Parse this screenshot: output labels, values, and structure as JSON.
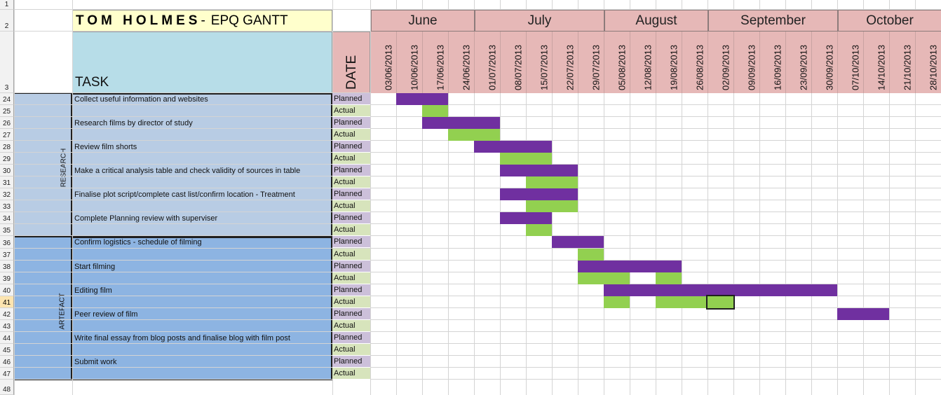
{
  "row_numbers": [
    "1",
    "2",
    "3",
    "24",
    "25",
    "26",
    "27",
    "28",
    "29",
    "30",
    "31",
    "32",
    "33",
    "34",
    "35",
    "36",
    "37",
    "38",
    "39",
    "40",
    "41",
    "42",
    "43",
    "44",
    "45",
    "46",
    "47",
    "48"
  ],
  "selected_row": "41",
  "title": {
    "name": "TOM HOLMES",
    "separator": "-",
    "subtitle": "EPQ GANTT"
  },
  "header": {
    "task_label": "TASK",
    "date_label": "DATE"
  },
  "months": [
    "June",
    "July",
    "August",
    "September",
    "October"
  ],
  "weeks": [
    "03/06/2013",
    "10/06/2013",
    "17/06/2013",
    "24/06/2013",
    "01/07/2013",
    "08/07/2013",
    "15/07/2013",
    "22/07/2013",
    "29/07/2013",
    "05/08/2013",
    "12/08/2013",
    "19/08/2013",
    "26/08/2013",
    "02/09/2013",
    "09/09/2013",
    "16/09/2013",
    "23/09/2013",
    "30/09/2013",
    "07/10/2013",
    "14/10/2013",
    "21/10/2013",
    "28/10/2013"
  ],
  "sections": [
    {
      "label": "RESEARCH",
      "color": "#b8cce4"
    },
    {
      "label": "ARTEFACT",
      "color": "#8db4e2"
    }
  ],
  "tasks": [
    {
      "name": "Collect useful information and websites",
      "planned": [
        [
          1,
          3
        ]
      ],
      "actual": [
        [
          2,
          3
        ]
      ]
    },
    {
      "name": "Research films by director of study",
      "planned": [
        [
          2,
          5
        ]
      ],
      "actual": [
        [
          3,
          5
        ]
      ]
    },
    {
      "name": "Review film shorts",
      "planned": [
        [
          4,
          7
        ]
      ],
      "actual": [
        [
          5,
          7
        ]
      ]
    },
    {
      "name": "Make a critical analysis table and check validity of sources in table",
      "planned": [
        [
          5,
          8
        ]
      ],
      "actual": [
        [
          6,
          8
        ]
      ]
    },
    {
      "name": "Finalise plot script/complete cast list/confirm location - Treatment",
      "planned": [
        [
          5,
          8
        ]
      ],
      "actual": [
        [
          6,
          8
        ]
      ]
    },
    {
      "name": "Complete Planning review with superviser",
      "planned": [
        [
          5,
          7
        ]
      ],
      "actual": [
        [
          6,
          7
        ]
      ]
    },
    {
      "name": "Confirm logistics - schedule of filming",
      "planned": [
        [
          7,
          9
        ]
      ],
      "actual": [
        [
          8,
          9
        ]
      ]
    },
    {
      "name": "Start filming",
      "planned": [
        [
          8,
          12
        ]
      ],
      "actual": [
        [
          8,
          10
        ],
        [
          11,
          12
        ]
      ]
    },
    {
      "name": "Editing film",
      "planned": [
        [
          9,
          18
        ]
      ],
      "actual": [
        [
          9,
          10
        ],
        [
          11,
          13
        ],
        [
          13,
          14
        ]
      ]
    },
    {
      "name": "Peer review of film",
      "planned": [
        [
          18,
          20
        ]
      ],
      "actual": []
    },
    {
      "name": "Write final essay from blog posts and finalise blog with film post",
      "planned": [],
      "actual": []
    },
    {
      "name": "Submit work",
      "planned": [],
      "actual": []
    }
  ],
  "status_labels": {
    "planned": "Planned",
    "actual": "Actual"
  },
  "colors": {
    "planned_bar": "#7030a0",
    "actual_bar": "#92d050",
    "title_bg": "#ffffcc",
    "task_header_bg": "#b7dde8",
    "date_header_bg": "#e6b8b7"
  }
}
